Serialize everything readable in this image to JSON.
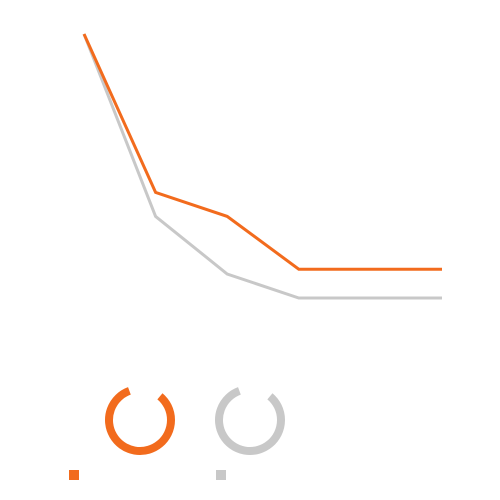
{
  "chart_data": {
    "type": "line",
    "title": "",
    "xlabel": "",
    "ylabel": "",
    "x": [
      1,
      2,
      3,
      4,
      5,
      6
    ],
    "ylim": [
      0,
      100
    ],
    "grid": false,
    "legend": "bottom-left",
    "series": [
      {
        "values": [
          95,
          62,
          57,
          46,
          46,
          46
        ],
        "color": "#f26b1d",
        "legend_icon": "ring-icon"
      },
      {
        "values": [
          95,
          57,
          45,
          40,
          40,
          40
        ],
        "color": "#c8c8c8",
        "legend_icon": "ring-icon"
      }
    ]
  }
}
